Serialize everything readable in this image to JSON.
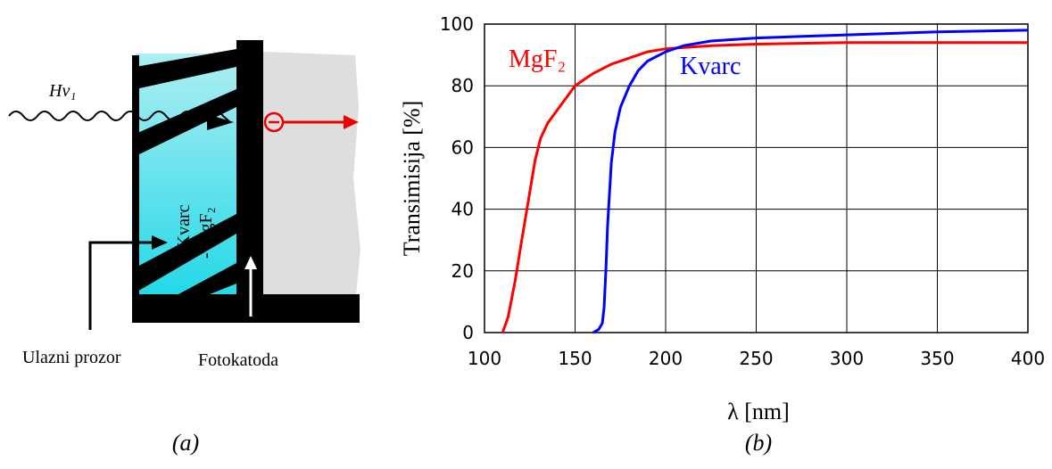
{
  "diagram": {
    "photon": "Hv₁",
    "window_materials": [
      "- Kvarc",
      "- MgF₂"
    ],
    "labels": [
      "Ulazni prozor",
      "Fotokatoda"
    ],
    "caption": "(a)"
  },
  "chart_data": {
    "type": "line",
    "caption": "(b)",
    "x_label": "λ [nm]",
    "y_label": "Transimisija [%]",
    "xlim": [
      100,
      400
    ],
    "xticks": [
      100,
      150,
      200,
      250,
      300,
      350,
      400
    ],
    "ylim": [
      0,
      100
    ],
    "yticks": [
      0,
      20,
      40,
      60,
      80,
      100
    ],
    "grid": true,
    "series": [
      {
        "name": "MgF₂",
        "color": "#ff0000",
        "x": [
          110,
          113,
          117,
          120,
          124,
          128,
          131,
          135,
          140,
          145,
          150,
          155,
          160,
          170,
          180,
          190,
          200,
          225,
          250,
          300,
          400
        ],
        "values": [
          0,
          5,
          17,
          28,
          42,
          56,
          63,
          68,
          72,
          76,
          80,
          82,
          84,
          87,
          89,
          91,
          92,
          93,
          93.5,
          94,
          94
        ]
      },
      {
        "name": "Kvarc",
        "color": "#0000ff",
        "x": [
          160,
          163,
          165,
          166,
          167,
          168,
          170,
          172,
          175,
          180,
          185,
          190,
          200,
          210,
          225,
          250,
          300,
          350,
          400
        ],
        "values": [
          0,
          1,
          3,
          8,
          20,
          35,
          55,
          65,
          73,
          80,
          85,
          88,
          91,
          93,
          94.5,
          95.5,
          96.5,
          97.5,
          98
        ]
      }
    ]
  }
}
